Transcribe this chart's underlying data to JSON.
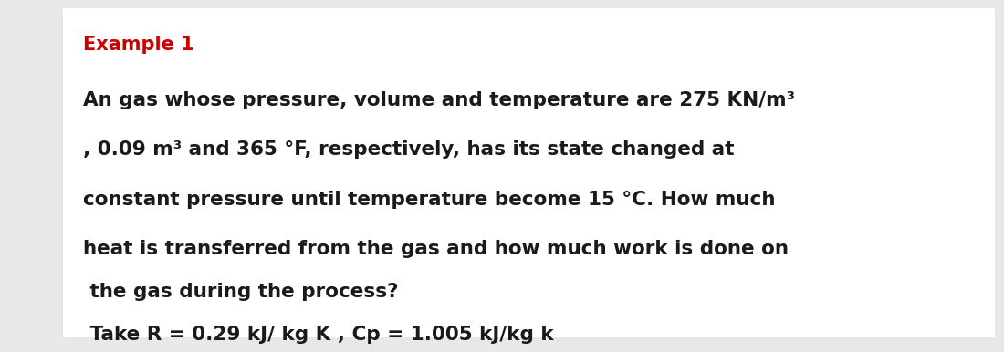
{
  "background_color": "#e8e8e8",
  "box_color": "#ffffff",
  "example_label": "Example 1",
  "example_color": "#cc0000",
  "example_fontsize": 15,
  "line1": "An gas whose pressure, volume and temperature are 275 KN/m³",
  "line2": ", 0.09 m³ and 365 °F, respectively, has its state changed at",
  "line3": "constant pressure until temperature become 15 °C. How much",
  "line4": "heat is transferred from the gas and how much work is done on",
  "line5": " the gas during the process?",
  "line6": " Take R = 0.29 kJ/ kg K , Cp = 1.005 kJ/kg k",
  "body_fontsize": 15.5,
  "body_color": "#1a1a1a",
  "font_family": "DejaVu Sans"
}
